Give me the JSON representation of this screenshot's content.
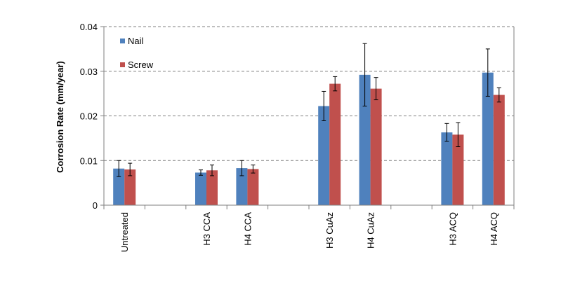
{
  "chart_data": {
    "type": "bar",
    "title": "",
    "xlabel": "",
    "ylabel": "Corrosion Rate (mm/year)",
    "ylim": [
      0,
      0.04
    ],
    "yticks": [
      "0",
      "0.01",
      "0.02",
      "0.03",
      "0.04"
    ],
    "grid": "dashed horizontal",
    "legend": {
      "placement": "top-left",
      "entries": [
        "Nail",
        "Screw"
      ]
    },
    "categories": [
      "Untreated",
      "",
      "H3 CCA",
      "H4 CCA",
      "",
      "H3 CuAz",
      "H4 CuAz",
      "",
      "H3 ACQ",
      "H4 ACQ"
    ],
    "series": [
      {
        "name": "Nail",
        "color": "#4f81bd",
        "values": [
          0.0082,
          null,
          0.0073,
          0.0083,
          null,
          0.0222,
          0.0292,
          null,
          0.0163,
          0.0297
        ],
        "errors": [
          0.0018,
          null,
          0.0006,
          0.0017,
          null,
          0.0033,
          0.007,
          null,
          0.002,
          0.0053
        ]
      },
      {
        "name": "Screw",
        "color": "#c0504d",
        "values": [
          0.008,
          null,
          0.0078,
          0.0081,
          null,
          0.0272,
          0.0261,
          null,
          0.0158,
          0.0247
        ],
        "errors": [
          0.0014,
          null,
          0.0012,
          0.0009,
          null,
          0.0016,
          0.0025,
          null,
          0.0027,
          0.0016
        ]
      }
    ]
  }
}
